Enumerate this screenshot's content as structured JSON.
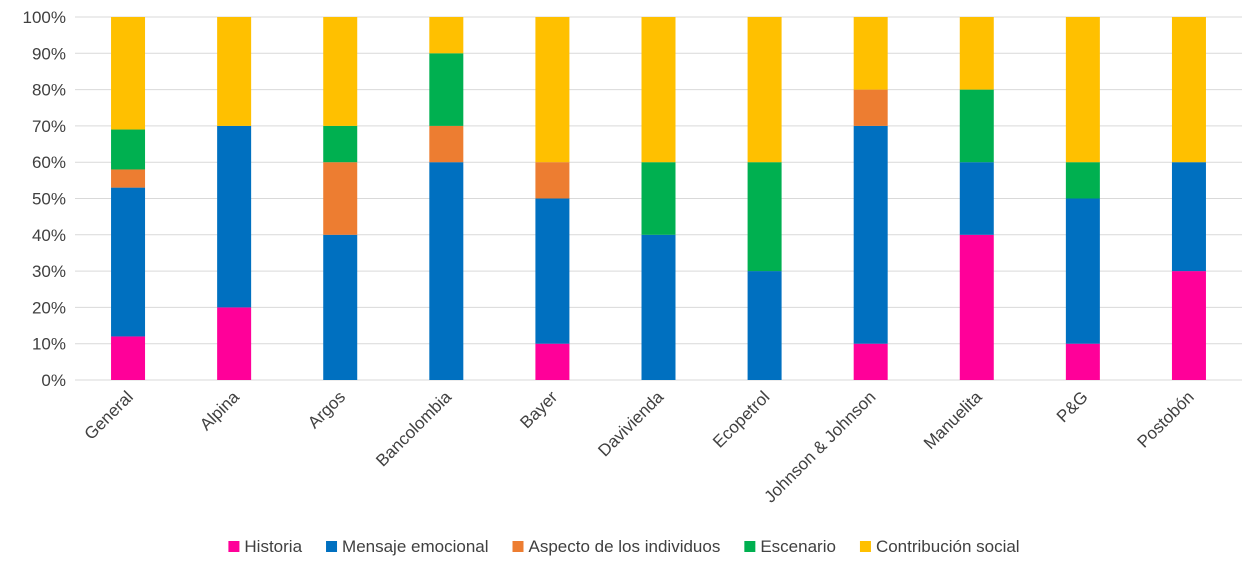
{
  "chart_data": {
    "type": "bar",
    "stacked": true,
    "normalized": true,
    "categories": [
      "General",
      "Alpina",
      "Argos",
      "Bancolombia",
      "Bayer",
      "Davivienda",
      "Ecopetrol",
      "Johnson & Johnson",
      "Manuelita",
      "P&G",
      "Postobón"
    ],
    "series": [
      {
        "name": "Historia",
        "color": "#FF0099",
        "values": [
          12,
          20,
          0,
          0,
          10,
          0,
          0,
          10,
          40,
          10,
          30
        ]
      },
      {
        "name": "Mensaje emocional",
        "color": "#0070C0",
        "values": [
          41,
          50,
          40,
          60,
          40,
          40,
          30,
          60,
          20,
          40,
          30
        ]
      },
      {
        "name": "Aspecto de los individuos",
        "color": "#ED7D31",
        "values": [
          5,
          0,
          20,
          10,
          10,
          0,
          0,
          10,
          0,
          0,
          0
        ]
      },
      {
        "name": "Escenario",
        "color": "#00B050",
        "values": [
          11,
          0,
          10,
          20,
          0,
          20,
          30,
          0,
          20,
          10,
          0
        ]
      },
      {
        "name": "Contribución social",
        "color": "#FFC000",
        "values": [
          31,
          30,
          30,
          10,
          40,
          40,
          40,
          20,
          20,
          40,
          40
        ]
      }
    ],
    "yticks": [
      "0%",
      "10%",
      "20%",
      "30%",
      "40%",
      "50%",
      "60%",
      "70%",
      "80%",
      "90%",
      "100%"
    ],
    "ylim": [
      0,
      100
    ],
    "grid": true,
    "legend": "bottom",
    "title": "",
    "xlabel": "",
    "ylabel": ""
  }
}
